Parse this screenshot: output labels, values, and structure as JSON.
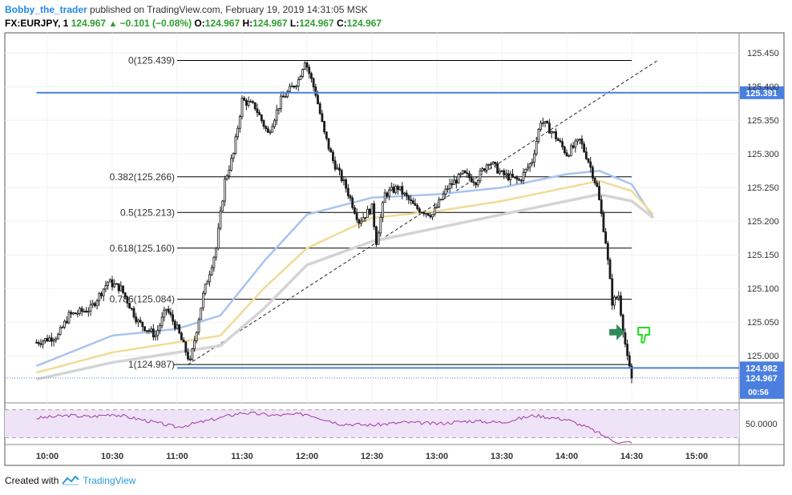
{
  "header": {
    "author": "Bobby_the_trader",
    "published": " published on TradingView.com, February 19, 2019 14:31:05 MSK",
    "symbol": "FX:EURJPY, 1",
    "last": "124.967",
    "change": "−0.101 (−0.08%)",
    "o_label": "O:",
    "o": "124.967",
    "h_label": "H:",
    "h": "124.967",
    "l_label": "L:",
    "l": "124.967",
    "c_label": "C:",
    "c": "124.967"
  },
  "footer": {
    "created_with": "Created with",
    "brand": "TradingView"
  },
  "colors": {
    "candle": "#1a1a1a",
    "fib": "#000000",
    "blue_level": "#4a7fe0",
    "ma_fast": "#a8c4ef",
    "ma_mid": "#f0dc96",
    "ma_slow": "#d4d4d4",
    "rsi": "#a03ca0",
    "rsi_band": "#efe3f7",
    "badge_bg": "#4a7fe0",
    "arrow": "#2e8b57",
    "thumb": "#22dd22"
  },
  "icons": [
    "arrow-right-icon",
    "thumbs-down-icon",
    "tradingview-logo-icon"
  ],
  "chart_data": {
    "type": "candlestick",
    "symbol": "FX:EURJPY",
    "interval": "1",
    "x_ticks": [
      "10:00",
      "10:30",
      "11:00",
      "11:30",
      "12:00",
      "12:30",
      "13:00",
      "13:30",
      "14:00",
      "14:30",
      "15:00"
    ],
    "y_ticks": [
      "125.450",
      "125.400",
      "125.350",
      "125.300",
      "125.250",
      "125.200",
      "125.150",
      "125.100",
      "125.050",
      "125.000"
    ],
    "ylim": [
      124.93,
      125.48
    ],
    "close_path": [
      {
        "t": "09:55",
        "p": 125.02
      },
      {
        "t": "10:05",
        "p": 125.03
      },
      {
        "t": "10:10",
        "p": 125.06
      },
      {
        "t": "10:20",
        "p": 125.07
      },
      {
        "t": "10:28",
        "p": 125.11
      },
      {
        "t": "10:34",
        "p": 125.1
      },
      {
        "t": "10:42",
        "p": 125.05
      },
      {
        "t": "10:50",
        "p": 125.03
      },
      {
        "t": "10:55",
        "p": 125.07
      },
      {
        "t": "11:00",
        "p": 125.04
      },
      {
        "t": "11:06",
        "p": 124.99
      },
      {
        "t": "11:12",
        "p": 125.09
      },
      {
        "t": "11:18",
        "p": 125.16
      },
      {
        "t": "11:22",
        "p": 125.26
      },
      {
        "t": "11:26",
        "p": 125.3
      },
      {
        "t": "11:30",
        "p": 125.38
      },
      {
        "t": "11:36",
        "p": 125.37
      },
      {
        "t": "11:42",
        "p": 125.33
      },
      {
        "t": "11:48",
        "p": 125.38
      },
      {
        "t": "11:56",
        "p": 125.41
      },
      {
        "t": "11:59",
        "p": 125.44
      },
      {
        "t": "12:04",
        "p": 125.39
      },
      {
        "t": "12:08",
        "p": 125.33
      },
      {
        "t": "12:12",
        "p": 125.29
      },
      {
        "t": "12:18",
        "p": 125.25
      },
      {
        "t": "12:24",
        "p": 125.2
      },
      {
        "t": "12:30",
        "p": 125.22
      },
      {
        "t": "12:32",
        "p": 125.17
      },
      {
        "t": "12:36",
        "p": 125.24
      },
      {
        "t": "12:42",
        "p": 125.25
      },
      {
        "t": "12:50",
        "p": 125.22
      },
      {
        "t": "12:58",
        "p": 125.21
      },
      {
        "t": "13:05",
        "p": 125.25
      },
      {
        "t": "13:12",
        "p": 125.27
      },
      {
        "t": "13:18",
        "p": 125.26
      },
      {
        "t": "13:24",
        "p": 125.29
      },
      {
        "t": "13:30",
        "p": 125.27
      },
      {
        "t": "13:38",
        "p": 125.26
      },
      {
        "t": "13:44",
        "p": 125.29
      },
      {
        "t": "13:48",
        "p": 125.35
      },
      {
        "t": "13:54",
        "p": 125.33
      },
      {
        "t": "14:00",
        "p": 125.3
      },
      {
        "t": "14:06",
        "p": 125.32
      },
      {
        "t": "14:10",
        "p": 125.29
      },
      {
        "t": "14:14",
        "p": 125.25
      },
      {
        "t": "14:18",
        "p": 125.17
      },
      {
        "t": "14:21",
        "p": 125.08
      },
      {
        "t": "14:24",
        "p": 125.09
      },
      {
        "t": "14:26",
        "p": 125.04
      },
      {
        "t": "14:28",
        "p": 124.995
      },
      {
        "t": "14:30",
        "p": 124.967
      }
    ],
    "moving_averages": [
      {
        "color": "#a8c4ef",
        "values": [
          {
            "t": "09:55",
            "p": 124.985
          },
          {
            "t": "10:30",
            "p": 125.03
          },
          {
            "t": "11:00",
            "p": 125.04
          },
          {
            "t": "11:20",
            "p": 125.06
          },
          {
            "t": "11:40",
            "p": 125.14
          },
          {
            "t": "12:00",
            "p": 125.21
          },
          {
            "t": "12:30",
            "p": 125.235
          },
          {
            "t": "13:00",
            "p": 125.24
          },
          {
            "t": "13:30",
            "p": 125.25
          },
          {
            "t": "14:00",
            "p": 125.27
          },
          {
            "t": "14:15",
            "p": 125.275
          },
          {
            "t": "14:30",
            "p": 125.255
          },
          {
            "t": "14:40",
            "p": 125.205
          }
        ]
      },
      {
        "color": "#f0dc96",
        "values": [
          {
            "t": "09:55",
            "p": 124.975
          },
          {
            "t": "10:30",
            "p": 125.005
          },
          {
            "t": "11:00",
            "p": 125.02
          },
          {
            "t": "11:20",
            "p": 125.03
          },
          {
            "t": "11:40",
            "p": 125.1
          },
          {
            "t": "12:00",
            "p": 125.16
          },
          {
            "t": "12:30",
            "p": 125.205
          },
          {
            "t": "13:00",
            "p": 125.215
          },
          {
            "t": "13:30",
            "p": 125.23
          },
          {
            "t": "14:00",
            "p": 125.25
          },
          {
            "t": "14:15",
            "p": 125.26
          },
          {
            "t": "14:30",
            "p": 125.245
          },
          {
            "t": "14:40",
            "p": 125.21
          }
        ]
      },
      {
        "color": "#d4d4d4",
        "values": [
          {
            "t": "09:55",
            "p": 124.965
          },
          {
            "t": "10:30",
            "p": 124.99
          },
          {
            "t": "11:00",
            "p": 125.005
          },
          {
            "t": "11:20",
            "p": 125.015
          },
          {
            "t": "11:40",
            "p": 125.07
          },
          {
            "t": "12:00",
            "p": 125.135
          },
          {
            "t": "12:30",
            "p": 125.17
          },
          {
            "t": "13:00",
            "p": 125.19
          },
          {
            "t": "13:30",
            "p": 125.21
          },
          {
            "t": "14:00",
            "p": 125.23
          },
          {
            "t": "14:15",
            "p": 125.24
          },
          {
            "t": "14:30",
            "p": 125.23
          },
          {
            "t": "14:40",
            "p": 125.205
          }
        ]
      }
    ],
    "fib_levels": [
      {
        "ratio": "0",
        "label": "0(125.439)",
        "price": 125.439
      },
      {
        "ratio": "0.382",
        "label": "0.382(125.266)",
        "price": 125.266
      },
      {
        "ratio": "0.5",
        "label": "0.5(125.213)",
        "price": 125.213
      },
      {
        "ratio": "0.618",
        "label": "0.618(125.160)",
        "price": 125.16
      },
      {
        "ratio": "0.786",
        "label": "0.786(125.084)",
        "price": 125.084
      },
      {
        "ratio": "1",
        "label": "1(124.987)",
        "price": 124.987
      }
    ],
    "fib_range": {
      "t_start": "09:55",
      "t_label_end": "11:00",
      "t_end": "14:30"
    },
    "trend_line": {
      "from": {
        "t": "11:05",
        "p": 124.987
      },
      "to": {
        "t": "14:42",
        "p": 125.439
      }
    },
    "horizontal_levels": [
      {
        "price": 125.391,
        "label": "125.391",
        "t_from": "09:55"
      },
      {
        "price": 124.982,
        "label": "124.982",
        "t_from": "11:00"
      }
    ],
    "last_price": {
      "price": 124.967,
      "label": "124.967",
      "countdown": "00:56"
    },
    "markers": [
      {
        "type": "arrow-right",
        "t": "14:23",
        "p": 125.035
      },
      {
        "type": "thumbs-down",
        "t": "14:33",
        "p": 125.03
      }
    ],
    "rsi": {
      "level_label": "50.0000",
      "ylim": [
        20,
        80
      ],
      "upper_band": 70,
      "lower_band": 30,
      "values": [
        {
          "t": "09:55",
          "p": 58
        },
        {
          "t": "10:10",
          "p": 62
        },
        {
          "t": "10:20",
          "p": 60
        },
        {
          "t": "10:30",
          "p": 64
        },
        {
          "t": "10:45",
          "p": 55
        },
        {
          "t": "11:00",
          "p": 45
        },
        {
          "t": "11:15",
          "p": 55
        },
        {
          "t": "11:30",
          "p": 66
        },
        {
          "t": "11:45",
          "p": 62
        },
        {
          "t": "12:00",
          "p": 64
        },
        {
          "t": "12:15",
          "p": 50
        },
        {
          "t": "12:30",
          "p": 48
        },
        {
          "t": "12:45",
          "p": 52
        },
        {
          "t": "13:00",
          "p": 50
        },
        {
          "t": "13:15",
          "p": 54
        },
        {
          "t": "13:30",
          "p": 52
        },
        {
          "t": "13:45",
          "p": 62
        },
        {
          "t": "14:00",
          "p": 56
        },
        {
          "t": "14:10",
          "p": 44
        },
        {
          "t": "14:20",
          "p": 28
        },
        {
          "t": "14:25",
          "p": 22
        },
        {
          "t": "14:30",
          "p": 24
        }
      ]
    }
  }
}
